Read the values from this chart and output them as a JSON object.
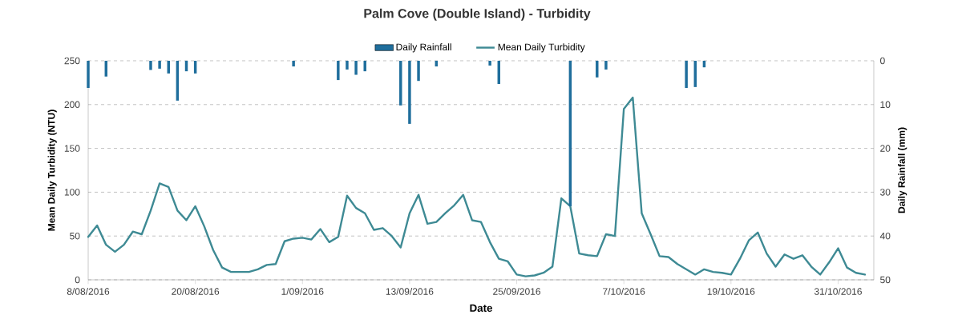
{
  "chart_data": {
    "type": "line",
    "title": "Palm Cove (Double Island) - Turbidity",
    "xlabel": "Date",
    "ylabel": "Mean Daily Turbidity (NTU)",
    "y2label": "Daily Rainfall (mm)",
    "xlim": [
      "2016-08-08",
      "2016-11-04"
    ],
    "xticks": [
      {
        "value": "2016-08-08",
        "label": "8/08/2016"
      },
      {
        "value": "2016-08-20",
        "label": "20/08/2016"
      },
      {
        "value": "2016-09-01",
        "label": "1/09/2016"
      },
      {
        "value": "2016-09-13",
        "label": "13/09/2016"
      },
      {
        "value": "2016-09-25",
        "label": "25/09/2016"
      },
      {
        "value": "2016-10-07",
        "label": "7/10/2016"
      },
      {
        "value": "2016-10-19",
        "label": "19/10/2016"
      },
      {
        "value": "2016-10-31",
        "label": "31/10/2016"
      }
    ],
    "ylim": [
      0,
      250
    ],
    "yticks": [
      0,
      50,
      100,
      150,
      200,
      250
    ],
    "y2lim": [
      50,
      0
    ],
    "y2ticks": [
      0,
      10,
      20,
      30,
      40,
      50
    ],
    "grid": "y",
    "legend": "top",
    "marker": "none",
    "line_style": "solid",
    "series": [
      {
        "name": "Daily Rainfall",
        "type": "bar",
        "axis": "y2",
        "color": "#1f6e9c",
        "x": [
          "2016-08-08",
          "2016-08-10",
          "2016-08-15",
          "2016-08-16",
          "2016-08-17",
          "2016-08-18",
          "2016-08-19",
          "2016-08-20",
          "2016-08-31",
          "2016-09-05",
          "2016-09-06",
          "2016-09-07",
          "2016-09-08",
          "2016-09-12",
          "2016-09-13",
          "2016-09-14",
          "2016-09-16",
          "2016-09-22",
          "2016-09-23",
          "2016-10-01",
          "2016-10-04",
          "2016-10-05",
          "2016-10-14",
          "2016-10-15",
          "2016-10-16"
        ],
        "values": [
          6.2,
          3.6,
          2.1,
          1.8,
          2.9,
          9.1,
          2.4,
          2.9,
          1.3,
          4.4,
          2.0,
          3.2,
          2.4,
          10.2,
          14.4,
          4.6,
          1.3,
          1.1,
          5.3,
          33.2,
          3.8,
          2.0,
          6.2,
          6.0,
          1.5
        ]
      },
      {
        "name": "Mean Daily Turbidity",
        "color": "#3e8a94",
        "x": [
          "2016-08-08",
          "2016-08-09",
          "2016-08-10",
          "2016-08-11",
          "2016-08-12",
          "2016-08-13",
          "2016-08-14",
          "2016-08-15",
          "2016-08-16",
          "2016-08-17",
          "2016-08-18",
          "2016-08-19",
          "2016-08-20",
          "2016-08-21",
          "2016-08-22",
          "2016-08-23",
          "2016-08-24",
          "2016-08-25",
          "2016-08-26",
          "2016-08-27",
          "2016-08-28",
          "2016-08-29",
          "2016-08-30",
          "2016-08-31",
          "2016-09-01",
          "2016-09-02",
          "2016-09-03",
          "2016-09-04",
          "2016-09-05",
          "2016-09-06",
          "2016-09-07",
          "2016-09-08",
          "2016-09-09",
          "2016-09-10",
          "2016-09-11",
          "2016-09-12",
          "2016-09-13",
          "2016-09-14",
          "2016-09-15",
          "2016-09-16",
          "2016-09-17",
          "2016-09-18",
          "2016-09-19",
          "2016-09-20",
          "2016-09-21",
          "2016-09-22",
          "2016-09-23",
          "2016-09-24",
          "2016-09-25",
          "2016-09-26",
          "2016-09-27",
          "2016-09-28",
          "2016-09-29",
          "2016-09-30",
          "2016-10-01",
          "2016-10-02",
          "2016-10-03",
          "2016-10-04",
          "2016-10-05",
          "2016-10-06",
          "2016-10-07",
          "2016-10-08",
          "2016-10-09",
          "2016-10-10",
          "2016-10-11",
          "2016-10-12",
          "2016-10-13",
          "2016-10-14",
          "2016-10-15",
          "2016-10-16",
          "2016-10-17",
          "2016-10-18",
          "2016-10-19",
          "2016-10-20",
          "2016-10-21",
          "2016-10-22",
          "2016-10-23",
          "2016-10-24",
          "2016-10-25",
          "2016-10-26",
          "2016-10-27",
          "2016-10-28",
          "2016-10-29",
          "2016-10-30",
          "2016-10-31",
          "2016-11-01",
          "2016-11-02",
          "2016-11-03"
        ],
        "values": [
          49,
          62,
          40,
          32,
          40,
          55,
          52,
          79,
          110,
          106,
          79,
          68,
          84,
          61,
          34,
          14,
          9,
          9,
          9,
          12,
          17,
          18,
          44,
          47,
          48,
          46,
          58,
          43,
          49,
          96,
          82,
          76,
          57,
          59,
          50,
          37,
          76,
          97,
          64,
          66,
          76,
          85,
          97,
          68,
          66,
          43,
          24,
          21,
          6,
          4,
          5,
          8,
          15,
          93,
          84,
          30,
          28,
          27,
          52,
          50,
          195,
          208,
          76,
          52,
          27,
          26,
          18,
          12,
          6,
          12,
          9,
          8,
          6,
          24,
          45,
          54,
          30,
          15,
          29,
          24,
          28,
          15,
          6,
          20,
          36,
          14,
          8,
          6
        ]
      }
    ]
  }
}
